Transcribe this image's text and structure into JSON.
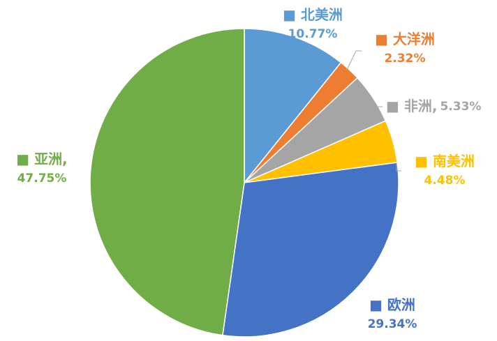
{
  "chart_data": {
    "type": "pie",
    "title": "",
    "legend": "none",
    "slices": [
      {
        "label": "北美洲",
        "value": 10.77,
        "value_text": "10.77%",
        "color": "#5b9bd5",
        "name_suffix": ""
      },
      {
        "label": "大洋洲",
        "value": 2.32,
        "value_text": "2.32%",
        "color": "#ed7d31",
        "name_suffix": ""
      },
      {
        "label": "非洲",
        "value": 5.33,
        "value_text": "5.33%",
        "color": "#a5a5a5",
        "name_suffix": ","
      },
      {
        "label": "南美洲",
        "value": 4.48,
        "value_text": "4.48%",
        "color": "#ffc000",
        "name_suffix": ""
      },
      {
        "label": "欧洲",
        "value": 29.34,
        "value_text": "29.34%",
        "color": "#4472c4",
        "name_suffix": ""
      },
      {
        "label": "亚洲",
        "value": 47.75,
        "value_text": "47.75%",
        "color": "#70ad47",
        "name_suffix": ","
      }
    ]
  }
}
